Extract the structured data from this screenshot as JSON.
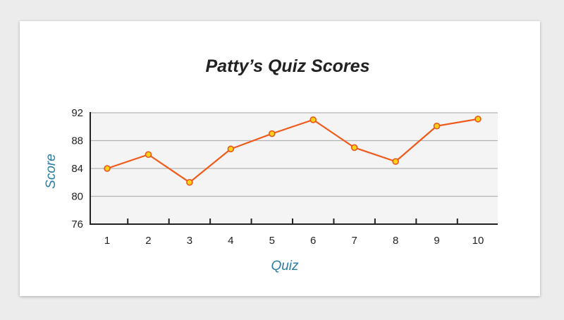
{
  "chart_data": {
    "type": "line",
    "title": "Patty’s Quiz Scores",
    "xlabel": "Quiz",
    "ylabel": "Score",
    "x": [
      "1",
      "2",
      "3",
      "4",
      "5",
      "6",
      "7",
      "8",
      "9",
      "10"
    ],
    "series": [
      {
        "values": [
          84,
          86,
          82,
          86.8,
          89,
          91,
          87,
          85,
          90.1,
          91.1
        ]
      }
    ],
    "ylim": [
      76,
      92
    ],
    "yticks": [
      "76",
      "80",
      "84",
      "88",
      "92"
    ],
    "grid": true,
    "colors": {
      "line": "#f05a1a",
      "marker_fill": "#ffd21a",
      "marker_stroke": "#e8561a",
      "plot_bg": "#f4f4f4",
      "gridline": "#b3b3b3",
      "axis": "#222222",
      "axis_title": "#2a7ca3"
    }
  }
}
